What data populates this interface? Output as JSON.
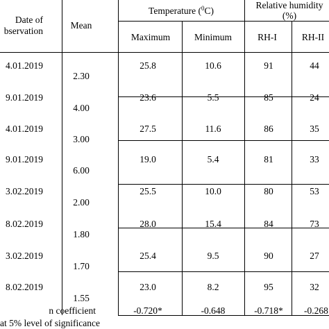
{
  "header": {
    "date_line1": "Date of",
    "date_line2": "bservation",
    "mean": "Mean",
    "temperature_prefix": "Temperature (",
    "temperature_sup": "0",
    "temperature_suffix": "C)",
    "rh_line1": "Relative humidity",
    "rh_line2": "(%)",
    "maximum": "Maximum",
    "minimum": "Minimum",
    "rh1": "RH-I",
    "rh2": "RH-II"
  },
  "rows": [
    {
      "date": "4.01.2019",
      "mean": "2.30",
      "max": "25.8",
      "min": "10.6",
      "rh1": "91",
      "rh2": "44"
    },
    {
      "date": "9.01.2019",
      "mean": "4.00",
      "max": "23.6",
      "min": "5.5",
      "rh1": "85",
      "rh2": "24"
    },
    {
      "date": "4.01.2019",
      "mean": "3.00",
      "max": "27.5",
      "min": "11.6",
      "rh1": "86",
      "rh2": "35"
    },
    {
      "date": "9.01.2019",
      "mean": "6.00",
      "max": "19.0",
      "min": "5.4",
      "rh1": "81",
      "rh2": "33"
    },
    {
      "date": "3.02.2019",
      "mean": "2.00",
      "max": "25.5",
      "min": "10.0",
      "rh1": "80",
      "rh2": "53"
    },
    {
      "date": "8.02.2019",
      "mean": "1.80",
      "max": "28.0",
      "min": "15.4",
      "rh1": "84",
      "rh2": "73"
    },
    {
      "date": "3.02.2019",
      "mean": "1.70",
      "max": "25.4",
      "min": "9.5",
      "rh1": "90",
      "rh2": "27"
    },
    {
      "date": "8.02.2019",
      "mean": "1.55",
      "max": "23.0",
      "min": "8.2",
      "rh1": "95",
      "rh2": "32"
    }
  ],
  "correlation": {
    "label": "n coefficient",
    "max": "-0.720*",
    "min": "-0.648",
    "rh1": "-0.718*",
    "rh2": "-0.268"
  },
  "footnote": "at 5% level of significance"
}
